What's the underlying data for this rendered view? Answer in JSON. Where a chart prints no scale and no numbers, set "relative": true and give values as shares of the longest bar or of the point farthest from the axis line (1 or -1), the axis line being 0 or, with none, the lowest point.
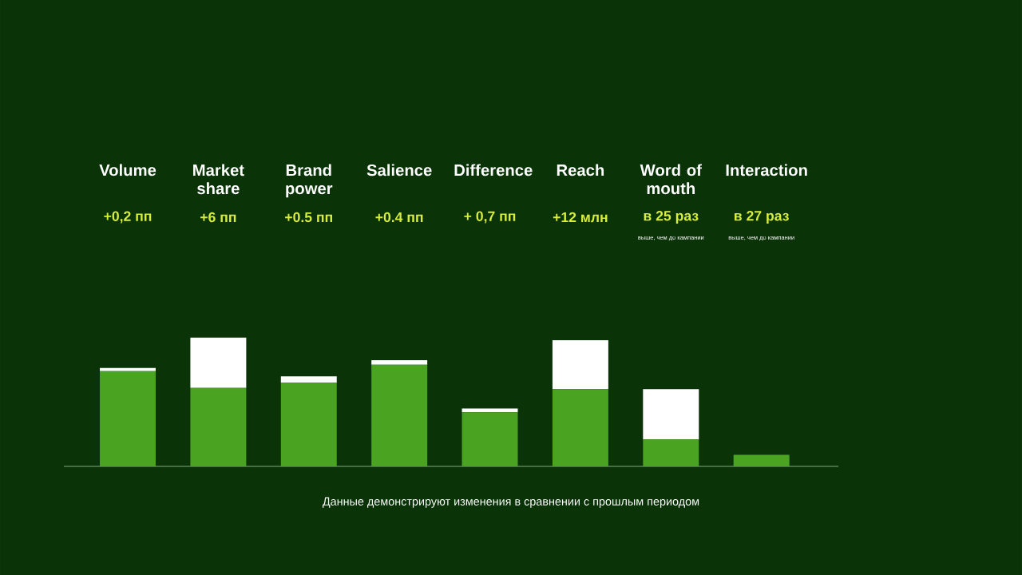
{
  "chart_data": {
    "type": "bar",
    "stacked": true,
    "relative": true,
    "categories": [
      "Volume",
      "Market share",
      "Brand power",
      "Salience",
      "Difference",
      "Reach",
      "Word of mouth",
      "Interaction"
    ],
    "series": [
      {
        "color": "#4aa321",
        "values": [
          0.74,
          0.61,
          0.65,
          0.79,
          0.42,
          0.6,
          0.21,
          0.09
        ]
      },
      {
        "color": "#ffffff",
        "values": [
          0.025,
          0.39,
          0.05,
          0.035,
          0.03,
          0.38,
          0.39,
          0
        ]
      }
    ],
    "annotations": [
      "+0,2 пп",
      "+6 пп",
      "+0.5 пп",
      "+0.4 пп",
      "+ 0,7 пп",
      "+12 млн",
      "в 25 раз",
      "в 27 раз",
      "выше, чем до кампании",
      "выше, чем до кампании",
      "Данные демонстрируют изменения в сравнении с прошлым периодом"
    ]
  }
}
